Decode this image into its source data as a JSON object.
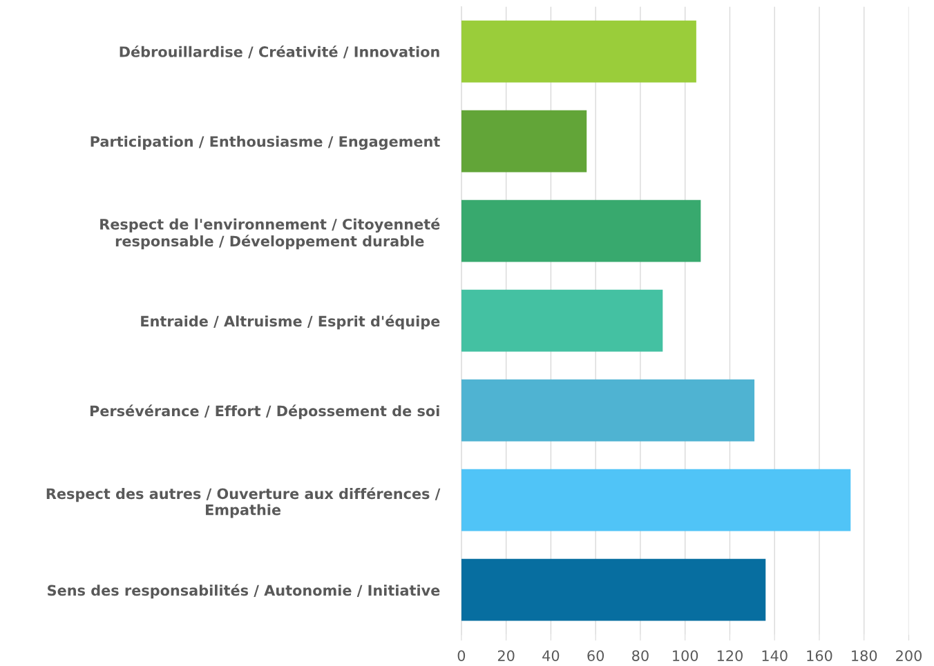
{
  "chart_data": {
    "type": "bar",
    "orientation": "horizontal",
    "categories": [
      "Débrouillardise / Créativité / Innovation",
      "Participation / Enthousiasme / Engagement",
      "Respect de l'environnement / Citoyenneté\nresponsable / Développement durable",
      "Entraide / Altruisme / Esprit d'équipe",
      "Persévérance / Effort / Dépossement de soi",
      "Respect des autres / Ouverture aux différences /\nEmpathie",
      "Sens des responsabilités / Autonomie / Initiative"
    ],
    "values": [
      105,
      56,
      107,
      90,
      131,
      174,
      136
    ],
    "colors": [
      "#9acd3a",
      "#62a538",
      "#38a96e",
      "#44c1a2",
      "#4fb3d2",
      "#50c4f7",
      "#076ea0"
    ],
    "xlim": [
      0,
      200
    ],
    "xticks": [
      0,
      20,
      40,
      60,
      80,
      100,
      120,
      140,
      160,
      180,
      200
    ],
    "grid": "x",
    "legend": false
  }
}
